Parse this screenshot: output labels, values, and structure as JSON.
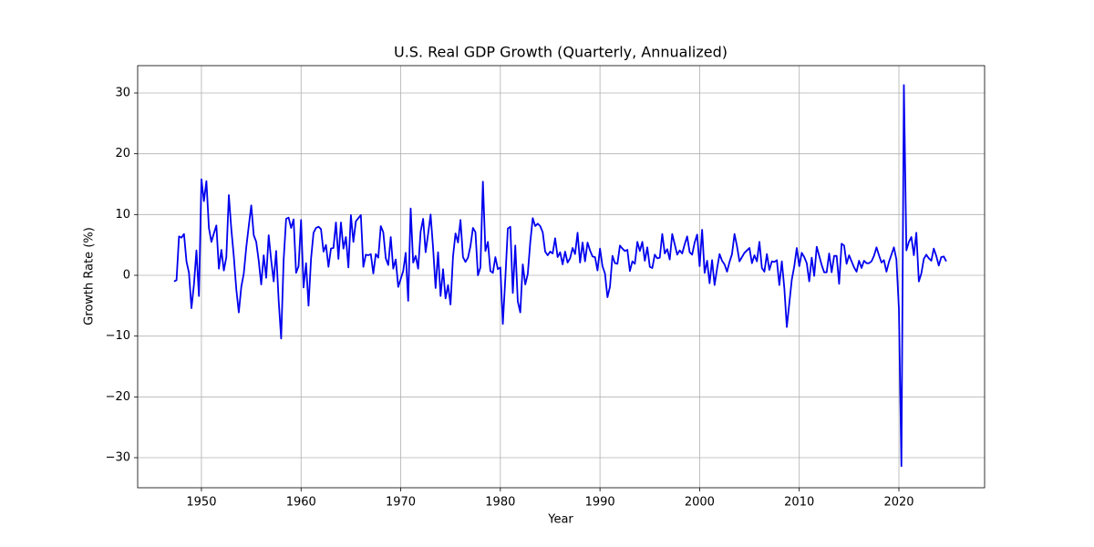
{
  "chart_data": {
    "type": "line",
    "title": "U.S. Real GDP Growth (Quarterly, Annualized)",
    "x_label": "Year",
    "y_label": "Growth Rate (%)",
    "x": [
      1947.25,
      1947.5,
      1947.75,
      1948,
      1948.25,
      1948.5,
      1948.75,
      1949,
      1949.25,
      1949.5,
      1949.75,
      1950,
      1950.25,
      1950.5,
      1950.75,
      1951,
      1951.25,
      1951.5,
      1951.75,
      1952,
      1952.25,
      1952.5,
      1952.75,
      1953,
      1953.25,
      1953.5,
      1953.75,
      1954,
      1954.25,
      1954.5,
      1954.75,
      1955,
      1955.25,
      1955.5,
      1955.75,
      1956,
      1956.25,
      1956.5,
      1956.75,
      1957,
      1957.25,
      1957.5,
      1957.75,
      1958,
      1958.25,
      1958.5,
      1958.75,
      1959,
      1959.25,
      1959.5,
      1959.75,
      1960,
      1960.25,
      1960.5,
      1960.75,
      1961,
      1961.25,
      1961.5,
      1961.75,
      1962,
      1962.25,
      1962.5,
      1962.75,
      1963,
      1963.25,
      1963.5,
      1963.75,
      1964,
      1964.25,
      1964.5,
      1964.75,
      1965,
      1965.25,
      1965.5,
      1965.75,
      1966,
      1966.25,
      1966.5,
      1966.75,
      1967,
      1967.25,
      1967.5,
      1967.75,
      1968,
      1968.25,
      1968.5,
      1968.75,
      1969,
      1969.25,
      1969.5,
      1969.75,
      1970,
      1970.25,
      1970.5,
      1970.75,
      1971,
      1971.25,
      1971.5,
      1971.75,
      1972,
      1972.25,
      1972.5,
      1972.75,
      1973,
      1973.25,
      1973.5,
      1973.75,
      1974,
      1974.25,
      1974.5,
      1974.75,
      1975,
      1975.25,
      1975.5,
      1975.75,
      1976,
      1976.25,
      1976.5,
      1976.75,
      1977,
      1977.25,
      1977.5,
      1977.75,
      1978,
      1978.25,
      1978.5,
      1978.75,
      1979,
      1979.25,
      1979.5,
      1979.75,
      1980,
      1980.25,
      1980.5,
      1980.75,
      1981,
      1981.25,
      1981.5,
      1981.75,
      1982,
      1982.25,
      1982.5,
      1982.75,
      1983,
      1983.25,
      1983.5,
      1983.75,
      1984,
      1984.25,
      1984.5,
      1984.75,
      1985,
      1985.25,
      1985.5,
      1985.75,
      1986,
      1986.25,
      1986.5,
      1986.75,
      1987,
      1987.25,
      1987.5,
      1987.75,
      1988,
      1988.25,
      1988.5,
      1988.75,
      1989,
      1989.25,
      1989.5,
      1989.75,
      1990,
      1990.25,
      1990.5,
      1990.75,
      1991,
      1991.25,
      1991.5,
      1991.75,
      1992,
      1992.25,
      1992.5,
      1992.75,
      1993,
      1993.25,
      1993.5,
      1993.75,
      1994,
      1994.25,
      1994.5,
      1994.75,
      1995,
      1995.25,
      1995.5,
      1995.75,
      1996,
      1996.25,
      1996.5,
      1996.75,
      1997,
      1997.25,
      1997.5,
      1997.75,
      1998,
      1998.25,
      1998.5,
      1998.75,
      1999,
      1999.25,
      1999.5,
      1999.75,
      2000,
      2000.25,
      2000.5,
      2000.75,
      2001,
      2001.25,
      2001.5,
      2001.75,
      2002,
      2002.25,
      2002.5,
      2002.75,
      2003,
      2003.25,
      2003.5,
      2003.75,
      2004,
      2004.25,
      2004.5,
      2004.75,
      2005,
      2005.25,
      2005.5,
      2005.75,
      2006,
      2006.25,
      2006.5,
      2006.75,
      2007,
      2007.25,
      2007.5,
      2007.75,
      2008,
      2008.25,
      2008.5,
      2008.75,
      2009,
      2009.25,
      2009.5,
      2009.75,
      2010,
      2010.25,
      2010.5,
      2010.75,
      2011,
      2011.25,
      2011.5,
      2011.75,
      2012,
      2012.25,
      2012.5,
      2012.75,
      2013,
      2013.25,
      2013.5,
      2013.75,
      2014,
      2014.25,
      2014.5,
      2014.75,
      2015,
      2015.25,
      2015.5,
      2015.75,
      2016,
      2016.25,
      2016.5,
      2016.75,
      2017,
      2017.25,
      2017.5,
      2017.75,
      2018,
      2018.25,
      2018.5,
      2018.75,
      2019,
      2019.25,
      2019.5,
      2019.75,
      2020,
      2020.25,
      2020.5,
      2020.75,
      2021,
      2021.25,
      2021.5,
      2021.75,
      2022,
      2022.25,
      2022.5,
      2022.75,
      2023,
      2023.25,
      2023.5,
      2023.75,
      2024,
      2024.25,
      2024.5,
      2024.75
    ],
    "series": [
      {
        "name": "Growth Rate",
        "color": "#0000ee",
        "values": [
          -1.0,
          -0.8,
          6.4,
          6.2,
          6.8,
          2.3,
          0.4,
          -5.4,
          -1.5,
          4.1,
          -3.4,
          15.8,
          12.2,
          15.5,
          7.8,
          5.5,
          6.9,
          8.2,
          1.1,
          4.2,
          0.8,
          3.0,
          13.2,
          7.6,
          3.1,
          -2.3,
          -6.1,
          -1.9,
          0.3,
          4.6,
          8.1,
          11.5,
          6.6,
          5.5,
          2.4,
          -1.5,
          3.3,
          -0.4,
          6.6,
          2.5,
          -1.0,
          4.0,
          -4.1,
          -10.4,
          2.5,
          9.3,
          9.5,
          7.8,
          9.2,
          0.4,
          1.5,
          9.1,
          -2.0,
          2.0,
          -5.0,
          2.7,
          7.0,
          7.8,
          8.0,
          7.6,
          3.9,
          5.0,
          1.4,
          4.4,
          4.5,
          8.7,
          2.7,
          8.7,
          4.4,
          6.3,
          1.3,
          9.9,
          5.5,
          8.9,
          9.4,
          9.9,
          1.4,
          3.4,
          3.3,
          3.5,
          0.3,
          3.5,
          2.9,
          8.1,
          7.1,
          2.8,
          1.7,
          6.3,
          1.1,
          2.6,
          -1.9,
          -0.6,
          0.7,
          3.7,
          -4.2,
          11.0,
          2.1,
          3.2,
          1.1,
          7.2,
          9.3,
          3.8,
          6.8,
          10.0,
          4.5,
          -2.1,
          3.8,
          -3.4,
          1.0,
          -3.8,
          -1.6,
          -4.8,
          3.1,
          6.9,
          5.4,
          9.1,
          3.0,
          2.2,
          2.9,
          4.8,
          7.8,
          7.1,
          0.0,
          1.3,
          15.4,
          4.0,
          5.5,
          0.7,
          0.4,
          3.0,
          1.0,
          1.3,
          -8.0,
          -0.5,
          7.7,
          8.0,
          -2.9,
          4.9,
          -4.3,
          -6.1,
          1.8,
          -1.5,
          0.2,
          5.4,
          9.4,
          8.1,
          8.5,
          8.1,
          7.1,
          3.9,
          3.3,
          3.9,
          3.6,
          6.1,
          3.0,
          3.8,
          1.8,
          3.9,
          2.1,
          2.8,
          4.5,
          3.5,
          7.0,
          2.1,
          5.4,
          2.3,
          5.4,
          4.1,
          3.1,
          3.0,
          0.8,
          4.4,
          1.5,
          0.3,
          -3.6,
          -1.9,
          3.2,
          2.0,
          1.9,
          4.9,
          4.4,
          4.0,
          4.2,
          0.7,
          2.3,
          1.9,
          5.5,
          4.0,
          5.5,
          2.4,
          4.6,
          1.4,
          1.2,
          3.4,
          2.8,
          2.9,
          6.8,
          3.6,
          4.3,
          2.6,
          6.8,
          5.1,
          3.4,
          4.1,
          3.6,
          5.1,
          6.4,
          3.8,
          3.4,
          5.4,
          6.7,
          1.5,
          7.5,
          0.4,
          2.4,
          -1.3,
          2.5,
          -1.6,
          1.1,
          3.5,
          2.4,
          1.8,
          0.6,
          2.2,
          3.5,
          6.8,
          4.8,
          2.3,
          3.0,
          3.7,
          4.1,
          4.5,
          2.0,
          3.3,
          2.3,
          5.5,
          1.2,
          0.6,
          3.5,
          0.9,
          2.3,
          2.2,
          2.5,
          -1.6,
          2.3,
          -2.1,
          -8.5,
          -4.6,
          -0.7,
          1.5,
          4.5,
          1.5,
          3.7,
          3.0,
          2.0,
          -1.0,
          2.9,
          -0.1,
          4.7,
          3.2,
          1.7,
          0.5,
          0.5,
          3.6,
          0.5,
          3.2,
          3.2,
          -1.4,
          5.2,
          4.9,
          1.9,
          3.3,
          2.3,
          1.3,
          0.6,
          2.4,
          1.2,
          2.4,
          2.0,
          2.0,
          2.3,
          3.2,
          4.6,
          3.3,
          2.1,
          2.5,
          0.6,
          2.2,
          3.4,
          4.6,
          2.6,
          -5.5,
          -31.4,
          31.3,
          4.1,
          5.5,
          6.3,
          3.3,
          7.0,
          -1.0,
          0.3,
          2.7,
          3.4,
          2.8,
          2.4,
          4.4,
          3.2,
          1.6,
          3.0,
          3.1,
          2.3
        ]
      }
    ],
    "xlim": [
      1943.6,
      2028.6
    ],
    "ylim": [
      -34.95,
      34.5
    ],
    "xticks": [
      1950,
      1960,
      1970,
      1980,
      1990,
      2000,
      2010,
      2020
    ],
    "yticks": [
      {
        "value": -30,
        "label": "−30"
      },
      {
        "value": -20,
        "label": "−20"
      },
      {
        "value": -10,
        "label": "−10"
      },
      0,
      10,
      20,
      30
    ],
    "grid": true
  }
}
